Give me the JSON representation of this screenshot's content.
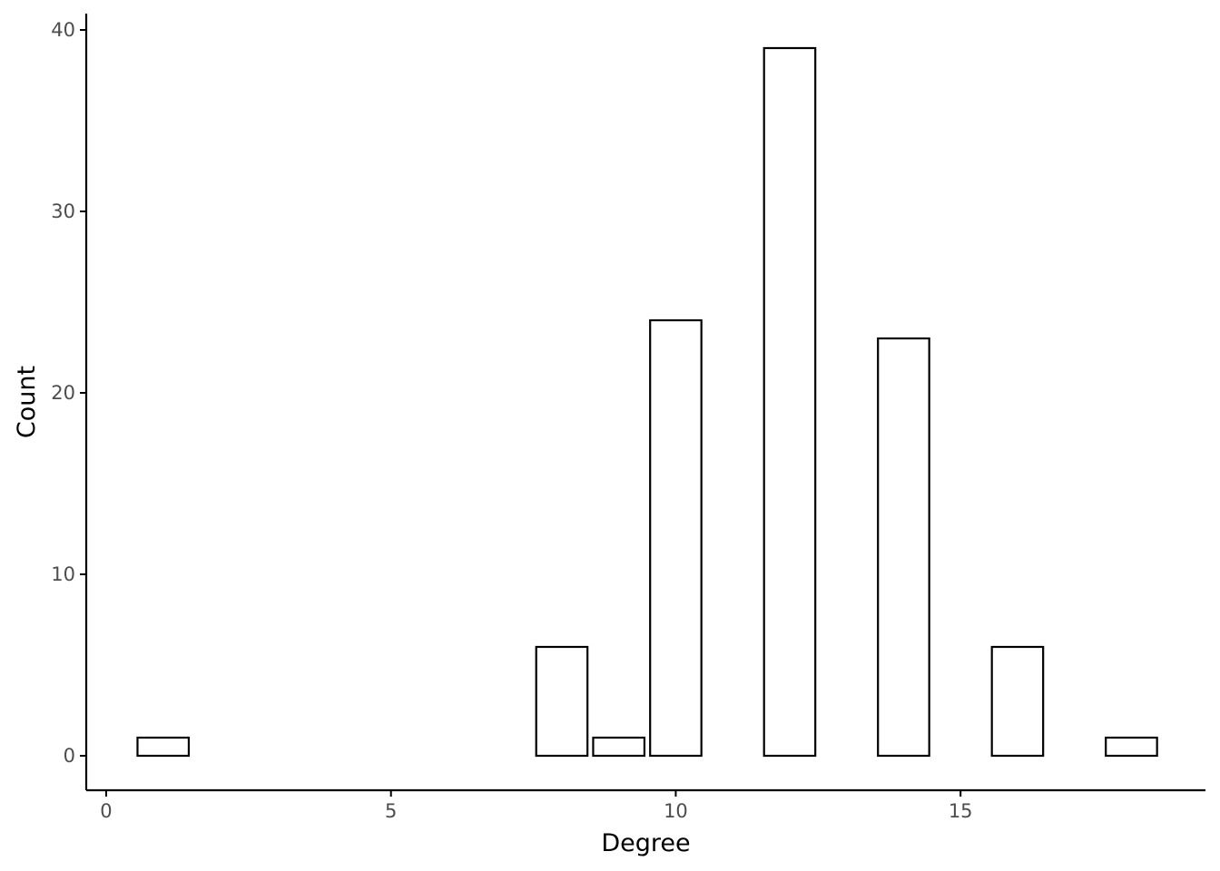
{
  "chart_data": {
    "type": "bar",
    "title": "",
    "xlabel": "Degree",
    "ylabel": "Count",
    "xlim": [
      -0.35,
      19.3
    ],
    "ylim": [
      -1.9,
      40.9
    ],
    "bar_width": 0.9,
    "x_ticks": [
      0,
      5,
      10,
      15
    ],
    "y_ticks": [
      0,
      10,
      20,
      30,
      40
    ],
    "x": [
      1,
      8,
      9,
      10,
      12,
      14,
      16,
      18
    ],
    "values": [
      1,
      6,
      1,
      24,
      39,
      23,
      6,
      1
    ],
    "grid": false,
    "legend": "none",
    "colors": {
      "bar_fill": "#ffffff",
      "bar_stroke": "#000000",
      "axis": "#000000",
      "tick_text": "#4d4d4d"
    }
  }
}
